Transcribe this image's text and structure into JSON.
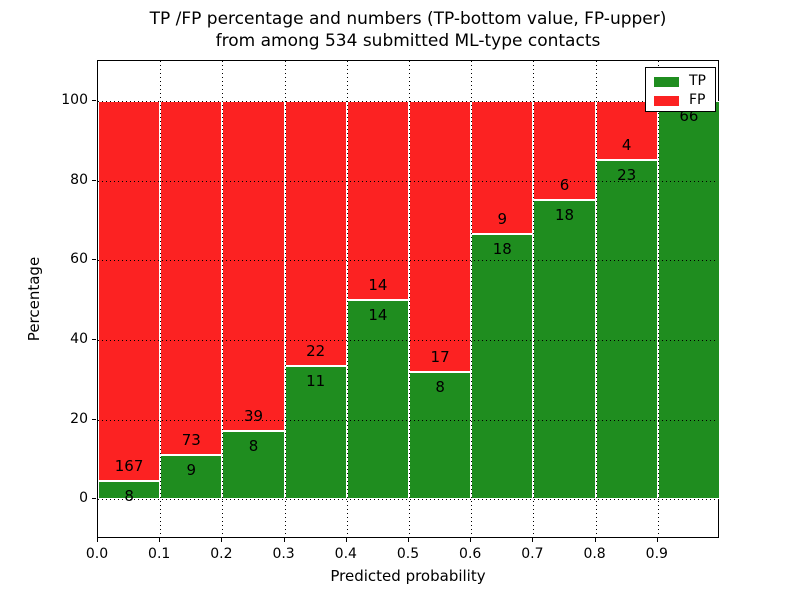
{
  "title_line1": "TP /FP percentage and numbers (TP-bottom value, FP-upper)",
  "title_line2": "from among 534 submitted ML-type contacts",
  "axes": {
    "xlabel": "Predicted probability",
    "ylabel": "Percentage"
  },
  "chart_data": {
    "type": "bar",
    "stacked": true,
    "title": "TP /FP percentage and numbers (TP-bottom value, FP-upper)\nfrom among 534 submitted ML-type contacts",
    "xlabel": "Predicted probability",
    "ylabel": "Percentage",
    "total_contacts": 534,
    "bin_starts": [
      0.0,
      0.1,
      0.2,
      0.3,
      0.4,
      0.5,
      0.6,
      0.7,
      0.8,
      0.9
    ],
    "bin_width": 0.1,
    "series": [
      {
        "name": "TP",
        "color": "#1f8d1f",
        "counts": [
          8,
          9,
          8,
          11,
          14,
          8,
          18,
          18,
          23,
          66
        ]
      },
      {
        "name": "FP",
        "color": "#fc2222",
        "counts": [
          167,
          73,
          39,
          22,
          14,
          17,
          9,
          6,
          4,
          0
        ]
      }
    ],
    "percent_tp": [
      4.57,
      10.98,
      17.02,
      33.33,
      50.0,
      32.0,
      66.67,
      75.0,
      85.19,
      100.0
    ],
    "xticks": {
      "values": [
        0.0,
        0.1,
        0.2,
        0.3,
        0.4,
        0.5,
        0.6,
        0.7,
        0.8,
        0.9
      ],
      "labels": [
        "0.0",
        "0.1",
        "0.2",
        "0.3",
        "0.4",
        "0.5",
        "0.6",
        "0.7",
        "0.8",
        "0.9"
      ]
    },
    "yticks": {
      "values": [
        0,
        20,
        40,
        60,
        80,
        100
      ],
      "labels": [
        "0",
        "20",
        "40",
        "60",
        "80",
        "100"
      ]
    },
    "xlim": [
      0.0,
      1.0
    ],
    "ylim": [
      -10,
      110
    ],
    "grid": "dotted-black",
    "legend": {
      "position": "upper-right",
      "items": [
        {
          "label": "TP",
          "color": "#1f8d1f"
        },
        {
          "label": "FP",
          "color": "#fc2222"
        }
      ]
    }
  }
}
